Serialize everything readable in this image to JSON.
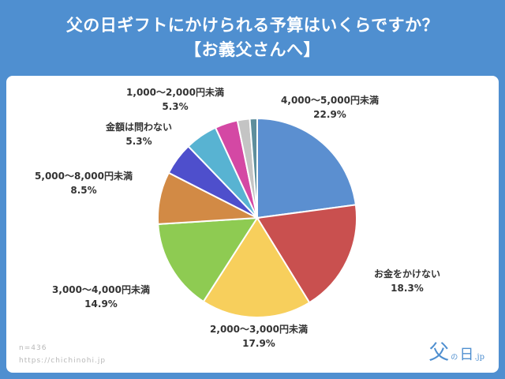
{
  "header": {
    "title_line1": "父の日ギフトにかけられる予算はいくらですか？",
    "title_line2": "【お義父さんへ】"
  },
  "footer": {
    "sample": "n=436",
    "url": "https://chichinohi.jp"
  },
  "logo": {
    "big": "父",
    "small": "の",
    "mid": "日",
    "tiny": ".jp"
  },
  "chart_data": {
    "type": "pie",
    "start_angle_deg": 0,
    "direction": "clockwise",
    "slices": [
      {
        "label": "4,000〜5,000円未満",
        "value": 22.9,
        "value_label": "22.9%",
        "color": "#5b8fd0"
      },
      {
        "label": "お金をかけない",
        "value": 18.3,
        "value_label": "18.3%",
        "color": "#c9504f"
      },
      {
        "label": "2,000〜3,000円未満",
        "value": 17.9,
        "value_label": "17.9%",
        "color": "#f7cf5c"
      },
      {
        "label": "3,000〜4,000円未満",
        "value": 14.9,
        "value_label": "14.9%",
        "color": "#8ecb52"
      },
      {
        "label": "5,000〜8,000円未満",
        "value": 8.5,
        "value_label": "8.5%",
        "color": "#d28a45"
      },
      {
        "label": "金額は問わない",
        "value": 5.3,
        "value_label": "5.3%",
        "color": "#4e4fcc"
      },
      {
        "label": "1,000〜2,000円未満",
        "value": 5.3,
        "value_label": "5.3%",
        "color": "#58b3d2"
      },
      {
        "label": "",
        "value": 3.7,
        "value_label": "",
        "color": "#d448a4"
      },
      {
        "label": "",
        "value": 2.0,
        "value_label": "",
        "color": "#c4c4c4"
      },
      {
        "label": "",
        "value": 1.2,
        "value_label": "",
        "color": "#5e8e9c"
      }
    ]
  }
}
